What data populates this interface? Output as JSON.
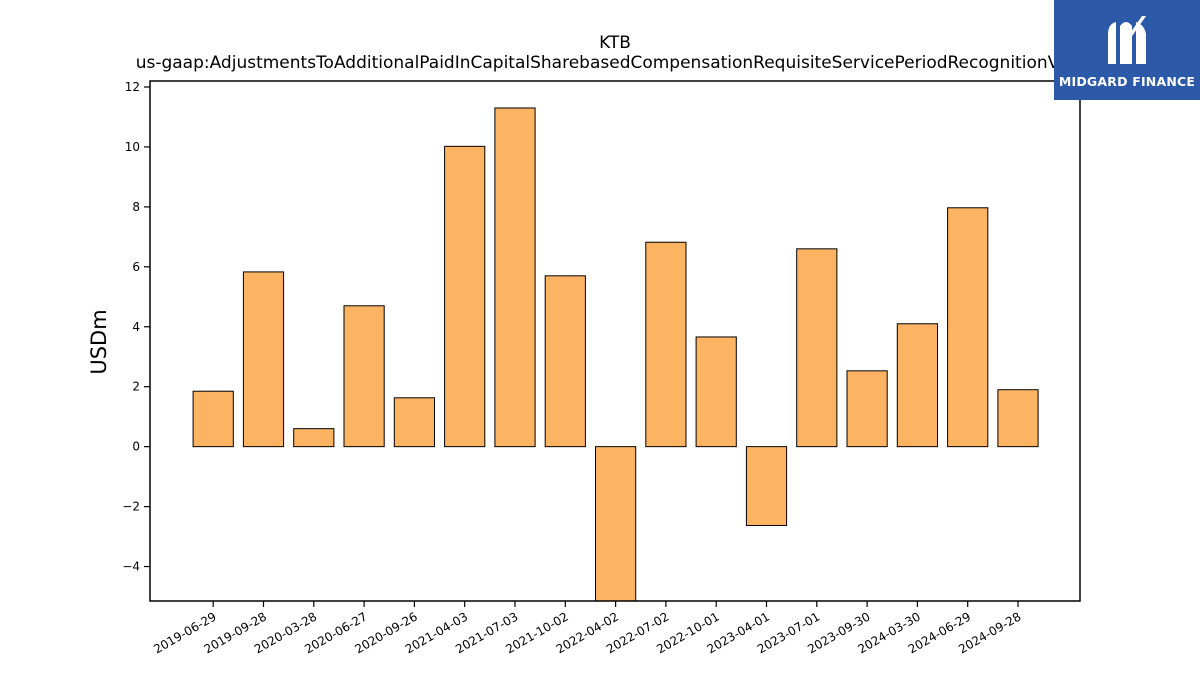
{
  "logo": {
    "text": "MIDGARD FINANCE",
    "background": "#2d5aa8",
    "icon": "midgard-logo-icon"
  },
  "colors": {
    "bar_fill": "#fdb462",
    "bar_stroke": "#000000"
  },
  "chart_data": {
    "type": "bar",
    "title": "KTB",
    "subtitle": "us-gaap:AdjustmentsToAdditionalPaidInCapitalSharebasedCompensationRequisiteServicePeriodRecognitionValue",
    "xlabel": "",
    "ylabel": "USDm",
    "categories": [
      "2019-06-29",
      "2019-09-28",
      "2020-03-28",
      "2020-06-27",
      "2020-09-26",
      "2021-04-03",
      "2021-07-03",
      "2021-10-02",
      "2022-04-02",
      "2022-07-02",
      "2022-10-01",
      "2023-04-01",
      "2023-07-01",
      "2023-09-30",
      "2024-03-30",
      "2024-06-29",
      "2024-09-28"
    ],
    "values": [
      1.85,
      5.83,
      0.6,
      4.7,
      1.63,
      10.02,
      11.3,
      5.7,
      -5.15,
      6.82,
      3.66,
      -2.63,
      6.6,
      2.53,
      4.1,
      7.97,
      1.9
    ],
    "ylim": [
      -5.15,
      12.2
    ],
    "yticks": [
      -4,
      -2,
      0,
      2,
      4,
      6,
      8,
      10,
      12
    ],
    "grid": false,
    "legend": "none"
  }
}
